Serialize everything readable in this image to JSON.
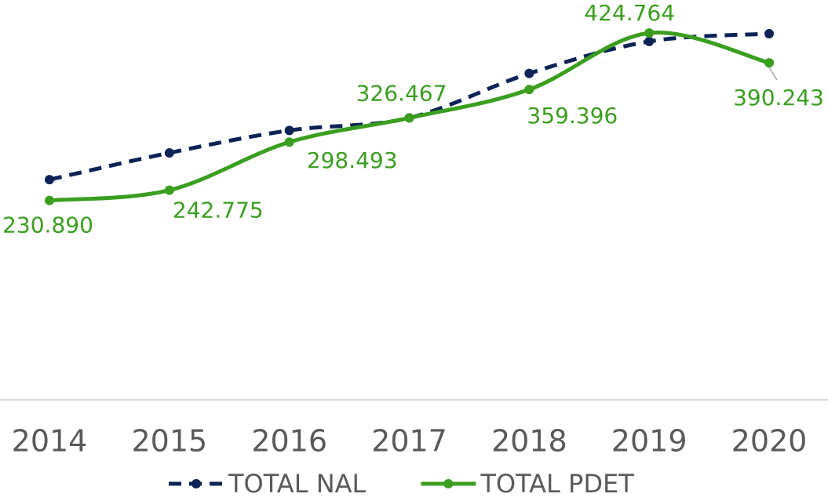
{
  "chart_data": {
    "type": "line",
    "categories": [
      "2014",
      "2015",
      "2016",
      "2017",
      "2018",
      "2019",
      "2020"
    ],
    "series": [
      {
        "name": "TOTAL NAL",
        "color": "#0d2357",
        "dashed": true,
        "values": [
          255000,
          286000,
          312000,
          326500,
          378000,
          415000,
          424000
        ]
      },
      {
        "name": "TOTAL PDET",
        "color": "#3a9e1f",
        "dashed": false,
        "values": [
          230890,
          242775,
          298493,
          326467,
          359396,
          424764,
          390243
        ],
        "value_labels": [
          "230.890",
          "242.775",
          "298.493",
          "326.467",
          "359.396",
          "424.764",
          "390.243"
        ]
      }
    ],
    "ylim": [
      0,
      463000
    ],
    "legend": "bottom"
  }
}
